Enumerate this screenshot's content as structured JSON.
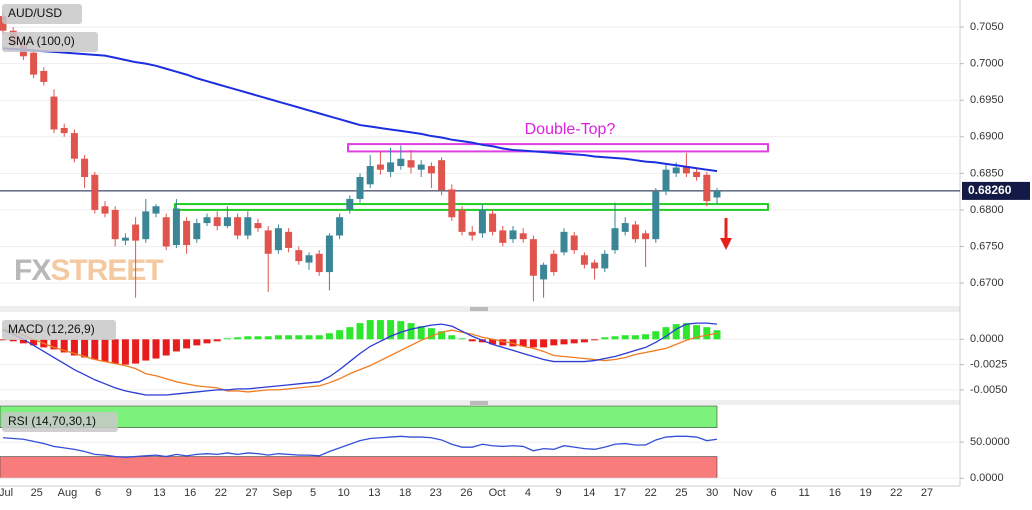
{
  "chart_data": [
    {
      "type": "candlestick",
      "title": "AUD/USD",
      "open": [
        0.7065,
        0.7045,
        0.7028,
        0.7015,
        0.699,
        0.6955,
        0.6912,
        0.6905,
        0.687,
        0.6848,
        0.6805,
        0.68,
        0.6758,
        0.678,
        0.676,
        0.6795,
        0.679,
        0.6752,
        0.6785,
        0.676,
        0.6782,
        0.679,
        0.6778,
        0.679,
        0.6765,
        0.6782,
        0.6772,
        0.6745,
        0.677,
        0.6745,
        0.6728,
        0.674,
        0.6715,
        0.6765,
        0.68,
        0.6815,
        0.6835,
        0.6862,
        0.6852,
        0.686,
        0.6868,
        0.6855,
        0.686,
        0.6868,
        0.6828,
        0.68,
        0.677,
        0.6768,
        0.6795,
        0.6772,
        0.676,
        0.6768,
        0.676,
        0.6705,
        0.674,
        0.6742,
        0.6765,
        0.6738,
        0.6728,
        0.672,
        0.6745,
        0.677,
        0.678,
        0.6768,
        0.676,
        0.6825,
        0.685,
        0.686,
        0.6852,
        0.6848,
        0.6817
      ],
      "high": [
        0.7072,
        0.705,
        0.7035,
        0.702,
        0.6995,
        0.6965,
        0.6918,
        0.691,
        0.6875,
        0.6852,
        0.6812,
        0.6805,
        0.6768,
        0.679,
        0.6815,
        0.6808,
        0.6795,
        0.6815,
        0.679,
        0.6788,
        0.6795,
        0.6798,
        0.6805,
        0.6795,
        0.6798,
        0.6788,
        0.6778,
        0.678,
        0.6775,
        0.675,
        0.6742,
        0.6745,
        0.6768,
        0.6795,
        0.682,
        0.685,
        0.6875,
        0.688,
        0.6885,
        0.6888,
        0.6882,
        0.6868,
        0.6865,
        0.6872,
        0.6835,
        0.6805,
        0.6778,
        0.6808,
        0.68,
        0.6778,
        0.6778,
        0.6775,
        0.6765,
        0.6728,
        0.6745,
        0.6775,
        0.677,
        0.6742,
        0.6732,
        0.6745,
        0.681,
        0.679,
        0.6785,
        0.6772,
        0.683,
        0.6862,
        0.6865,
        0.6878,
        0.6858,
        0.6852,
        0.683
      ],
      "low": [
        0.704,
        0.702,
        0.7005,
        0.698,
        0.697,
        0.6905,
        0.69,
        0.6865,
        0.683,
        0.6795,
        0.679,
        0.675,
        0.6752,
        0.668,
        0.6755,
        0.679,
        0.6745,
        0.6748,
        0.674,
        0.6755,
        0.6778,
        0.6772,
        0.6775,
        0.676,
        0.676,
        0.677,
        0.6688,
        0.674,
        0.6742,
        0.6725,
        0.6718,
        0.671,
        0.669,
        0.676,
        0.6795,
        0.681,
        0.683,
        0.6848,
        0.6845,
        0.6855,
        0.685,
        0.6845,
        0.683,
        0.682,
        0.6785,
        0.6765,
        0.6758,
        0.6762,
        0.6765,
        0.675,
        0.6755,
        0.6755,
        0.6675,
        0.668,
        0.671,
        0.6738,
        0.674,
        0.672,
        0.6705,
        0.6715,
        0.674,
        0.6765,
        0.6755,
        0.6722,
        0.6755,
        0.682,
        0.6845,
        0.6845,
        0.684,
        0.6805,
        0.6808
      ],
      "close": [
        0.7045,
        0.7025,
        0.701,
        0.6985,
        0.6975,
        0.691,
        0.6905,
        0.687,
        0.6845,
        0.68,
        0.6795,
        0.676,
        0.6762,
        0.6758,
        0.6798,
        0.6805,
        0.675,
        0.6802,
        0.6752,
        0.6782,
        0.679,
        0.6778,
        0.679,
        0.6765,
        0.679,
        0.6775,
        0.674,
        0.6775,
        0.6748,
        0.673,
        0.6738,
        0.6715,
        0.6765,
        0.679,
        0.6815,
        0.6845,
        0.686,
        0.6855,
        0.6865,
        0.687,
        0.6858,
        0.6862,
        0.685,
        0.6827,
        0.679,
        0.677,
        0.6765,
        0.68,
        0.677,
        0.6755,
        0.6772,
        0.676,
        0.671,
        0.6725,
        0.6715,
        0.677,
        0.6745,
        0.6725,
        0.672,
        0.674,
        0.6775,
        0.6782,
        0.676,
        0.676,
        0.6825,
        0.6855,
        0.6858,
        0.685,
        0.6845,
        0.6812,
        0.6826
      ],
      "up_color": "#3a8596",
      "down_color": "#e0544e",
      "sma": {
        "label": "SMA (100,0)",
        "color": "#1c2fe0",
        "values": [
          0.7021,
          0.702,
          0.7019,
          0.7018,
          0.7017,
          0.7016,
          0.7015,
          0.7014,
          0.7013,
          0.7012,
          0.7011,
          0.7008,
          0.7005,
          0.7002,
          0.7,
          0.6997,
          0.6993,
          0.6989,
          0.6985,
          0.698,
          0.6976,
          0.6972,
          0.6968,
          0.6964,
          0.696,
          0.6956,
          0.6952,
          0.6948,
          0.6944,
          0.694,
          0.6936,
          0.6932,
          0.6928,
          0.6924,
          0.692,
          0.6916,
          0.6914,
          0.6912,
          0.691,
          0.6908,
          0.6906,
          0.6904,
          0.6901,
          0.6899,
          0.6896,
          0.6894,
          0.6892,
          0.6889,
          0.6887,
          0.6884,
          0.6882,
          0.6881,
          0.688,
          0.6879,
          0.6878,
          0.6877,
          0.6876,
          0.6875,
          0.6873,
          0.6872,
          0.6871,
          0.687,
          0.6868,
          0.6866,
          0.6865,
          0.6863,
          0.6861,
          0.6859,
          0.6857,
          0.6855,
          0.6853
        ]
      },
      "last": {
        "value": 0.6826,
        "label": "0.68260",
        "color": "#131a45"
      },
      "zones": [
        {
          "range": [
            0.688,
            0.689
          ],
          "color": "#e040e0"
        },
        {
          "range": [
            0.68,
            0.6808
          ],
          "color": "#22cc22"
        }
      ],
      "annotation": {
        "text": "Double-Top?",
        "color": "#e020e0"
      },
      "watermark": [
        "FX",
        "STREET"
      ],
      "ylim": [
        0.667,
        0.7087
      ],
      "yticks": [
        {
          "value": 0.67,
          "label": "0.6700"
        },
        {
          "value": 0.675,
          "label": "0.6750"
        },
        {
          "value": 0.68,
          "label": "0.6800"
        },
        {
          "value": 0.685,
          "label": "0.6850"
        },
        {
          "value": 0.69,
          "label": "0.6900"
        },
        {
          "value": 0.695,
          "label": "0.6950"
        },
        {
          "value": 0.7,
          "label": "0.7000"
        },
        {
          "value": 0.705,
          "label": "0.7050"
        }
      ],
      "grid": true,
      "x_tick_labels": [
        "Jul",
        "25",
        "Aug",
        "6",
        "9",
        "13",
        "16",
        "22",
        "27",
        "Sep",
        "5",
        "10",
        "13",
        "18",
        "23",
        "26",
        "Oct",
        "4",
        "9",
        "14",
        "17",
        "22",
        "25",
        "30",
        "Nov",
        "6",
        "11",
        "16",
        "19",
        "22",
        "27"
      ]
    },
    {
      "type": "macd",
      "title": "MACD (12,26,9)",
      "histogram": {
        "pos_color": "#2ee62e",
        "neg_color": "#e81c1c",
        "values": [
          -0.0001,
          -0.0002,
          -0.0004,
          -0.0006,
          -0.0008,
          -0.001,
          -0.0013,
          -0.0016,
          -0.0018,
          -0.002,
          -0.0022,
          -0.0024,
          -0.0025,
          -0.0024,
          -0.0021,
          -0.0019,
          -0.0016,
          -0.0012,
          -0.0009,
          -0.0006,
          -0.0004,
          -0.0002,
          0.0001,
          0.0002,
          0.0003,
          0.0003,
          0.0003,
          0.0004,
          0.0004,
          0.0004,
          0.0004,
          0.0004,
          0.0006,
          0.0009,
          0.0012,
          0.0016,
          0.0019,
          0.0019,
          0.0019,
          0.0018,
          0.0016,
          0.0013,
          0.0011,
          0.0008,
          0.0004,
          0.0001,
          -0.0002,
          -0.0003,
          -0.0005,
          -0.0006,
          -0.0007,
          -0.0007,
          -0.0008,
          -0.0008,
          -0.0006,
          -0.0005,
          -0.0004,
          -0.0003,
          -0.0001,
          0.0002,
          0.0003,
          0.0004,
          0.0004,
          0.0005,
          0.0008,
          0.0012,
          0.0015,
          0.0016,
          0.0014,
          0.0012,
          0.0009
        ]
      },
      "macd_line": {
        "color": "#2a3bd6",
        "values": [
          0.0009,
          0.0005,
          0.0,
          -0.0006,
          -0.0012,
          -0.0018,
          -0.0024,
          -0.003,
          -0.0035,
          -0.004,
          -0.0044,
          -0.0048,
          -0.0051,
          -0.0053,
          -0.0055,
          -0.0055,
          -0.0055,
          -0.0054,
          -0.0053,
          -0.0052,
          -0.0051,
          -0.005,
          -0.005,
          -0.0049,
          -0.0049,
          -0.0048,
          -0.0047,
          -0.0046,
          -0.0045,
          -0.0044,
          -0.0043,
          -0.0042,
          -0.0037,
          -0.003,
          -0.0022,
          -0.0014,
          -0.0007,
          -0.0002,
          0.0003,
          0.0007,
          0.001,
          0.0012,
          0.0014,
          0.0015,
          0.0013,
          0.0008,
          0.0003,
          -0.0001,
          -0.0005,
          -0.0008,
          -0.0011,
          -0.0014,
          -0.0017,
          -0.002,
          -0.0022,
          -0.0022,
          -0.0022,
          -0.0022,
          -0.0021,
          -0.0019,
          -0.0017,
          -0.0014,
          -0.0011,
          -0.0008,
          -0.0003,
          0.0003,
          0.001,
          0.0015,
          0.0016,
          0.0016,
          0.0015
        ]
      },
      "signal_line": {
        "color": "#f07c22",
        "values": [
          0.001,
          0.0007,
          0.0004,
          0.0,
          -0.0004,
          -0.0008,
          -0.0011,
          -0.0014,
          -0.0017,
          -0.002,
          -0.0022,
          -0.0024,
          -0.0026,
          -0.0029,
          -0.0034,
          -0.0036,
          -0.0039,
          -0.0042,
          -0.0044,
          -0.0046,
          -0.0047,
          -0.0048,
          -0.0051,
          -0.0051,
          -0.0052,
          -0.0051,
          -0.005,
          -0.005,
          -0.0049,
          -0.0048,
          -0.0047,
          -0.0046,
          -0.0043,
          -0.0039,
          -0.0034,
          -0.003,
          -0.0026,
          -0.0021,
          -0.0016,
          -0.0011,
          -0.0006,
          -0.0001,
          0.0003,
          0.0007,
          0.0009,
          0.0007,
          0.0005,
          0.0002,
          0.0,
          -0.0002,
          -0.0004,
          -0.0007,
          -0.0009,
          -0.0012,
          -0.0016,
          -0.0017,
          -0.0018,
          -0.0019,
          -0.002,
          -0.0021,
          -0.002,
          -0.0018,
          -0.0015,
          -0.0013,
          -0.0011,
          -0.0009,
          -0.0005,
          -0.0001,
          0.0002,
          0.0004,
          0.0006
        ]
      },
      "ylim": [
        -0.0058,
        0.0025
      ],
      "yticks": [
        {
          "value": 0,
          "label": "0.0000"
        },
        {
          "value": -0.0025,
          "label": "-0.0025"
        },
        {
          "value": -0.005,
          "label": "-0.0050"
        }
      ]
    },
    {
      "type": "line",
      "title": "RSI (14,70,30,1)",
      "color": "#3550d8",
      "values": [
        56,
        55,
        54,
        51,
        48,
        44,
        42,
        40,
        37,
        33,
        32,
        30,
        29,
        30,
        31,
        32,
        30,
        33,
        31,
        33,
        34,
        33,
        35,
        33,
        35,
        34,
        32,
        34,
        33,
        32,
        32,
        31,
        37,
        42,
        47,
        52,
        55,
        56,
        57,
        58,
        57,
        57,
        56,
        53,
        47,
        43,
        43,
        47,
        45,
        44,
        45,
        44,
        38,
        41,
        40,
        45,
        43,
        41,
        40,
        43,
        47,
        48,
        46,
        46,
        53,
        57,
        58,
        58,
        57,
        52,
        54
      ],
      "zones": [
        {
          "range": [
            70,
            100
          ],
          "color": "#7cf27c"
        },
        {
          "range": [
            0,
            30
          ],
          "color": "#f87c7c"
        }
      ],
      "ylim": [
        -8,
        100
      ],
      "yticks": [
        {
          "value": 0,
          "label": "0.0000"
        },
        {
          "value": 50,
          "label": "50.0000"
        }
      ]
    }
  ]
}
